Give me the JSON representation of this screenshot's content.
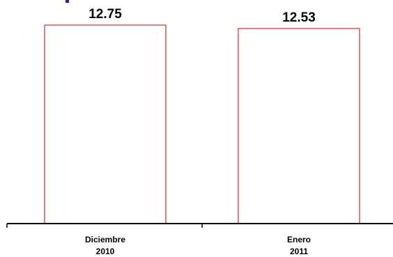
{
  "chart_data": {
    "type": "bar",
    "categories": [
      [
        "Diciembre",
        "2010"
      ],
      [
        "Enero",
        "2011"
      ]
    ],
    "values": [
      12.75,
      12.53
    ],
    "value_labels": [
      "12.75",
      "12.53"
    ],
    "title": "",
    "xlabel": "",
    "ylabel": "",
    "grid": false,
    "y_axis_visible": false,
    "colors": {
      "bar_fill": "#ffffff",
      "bar_border": "#cc0000",
      "axis": "#000000",
      "title_fragment": "#1f1fbf"
    }
  }
}
